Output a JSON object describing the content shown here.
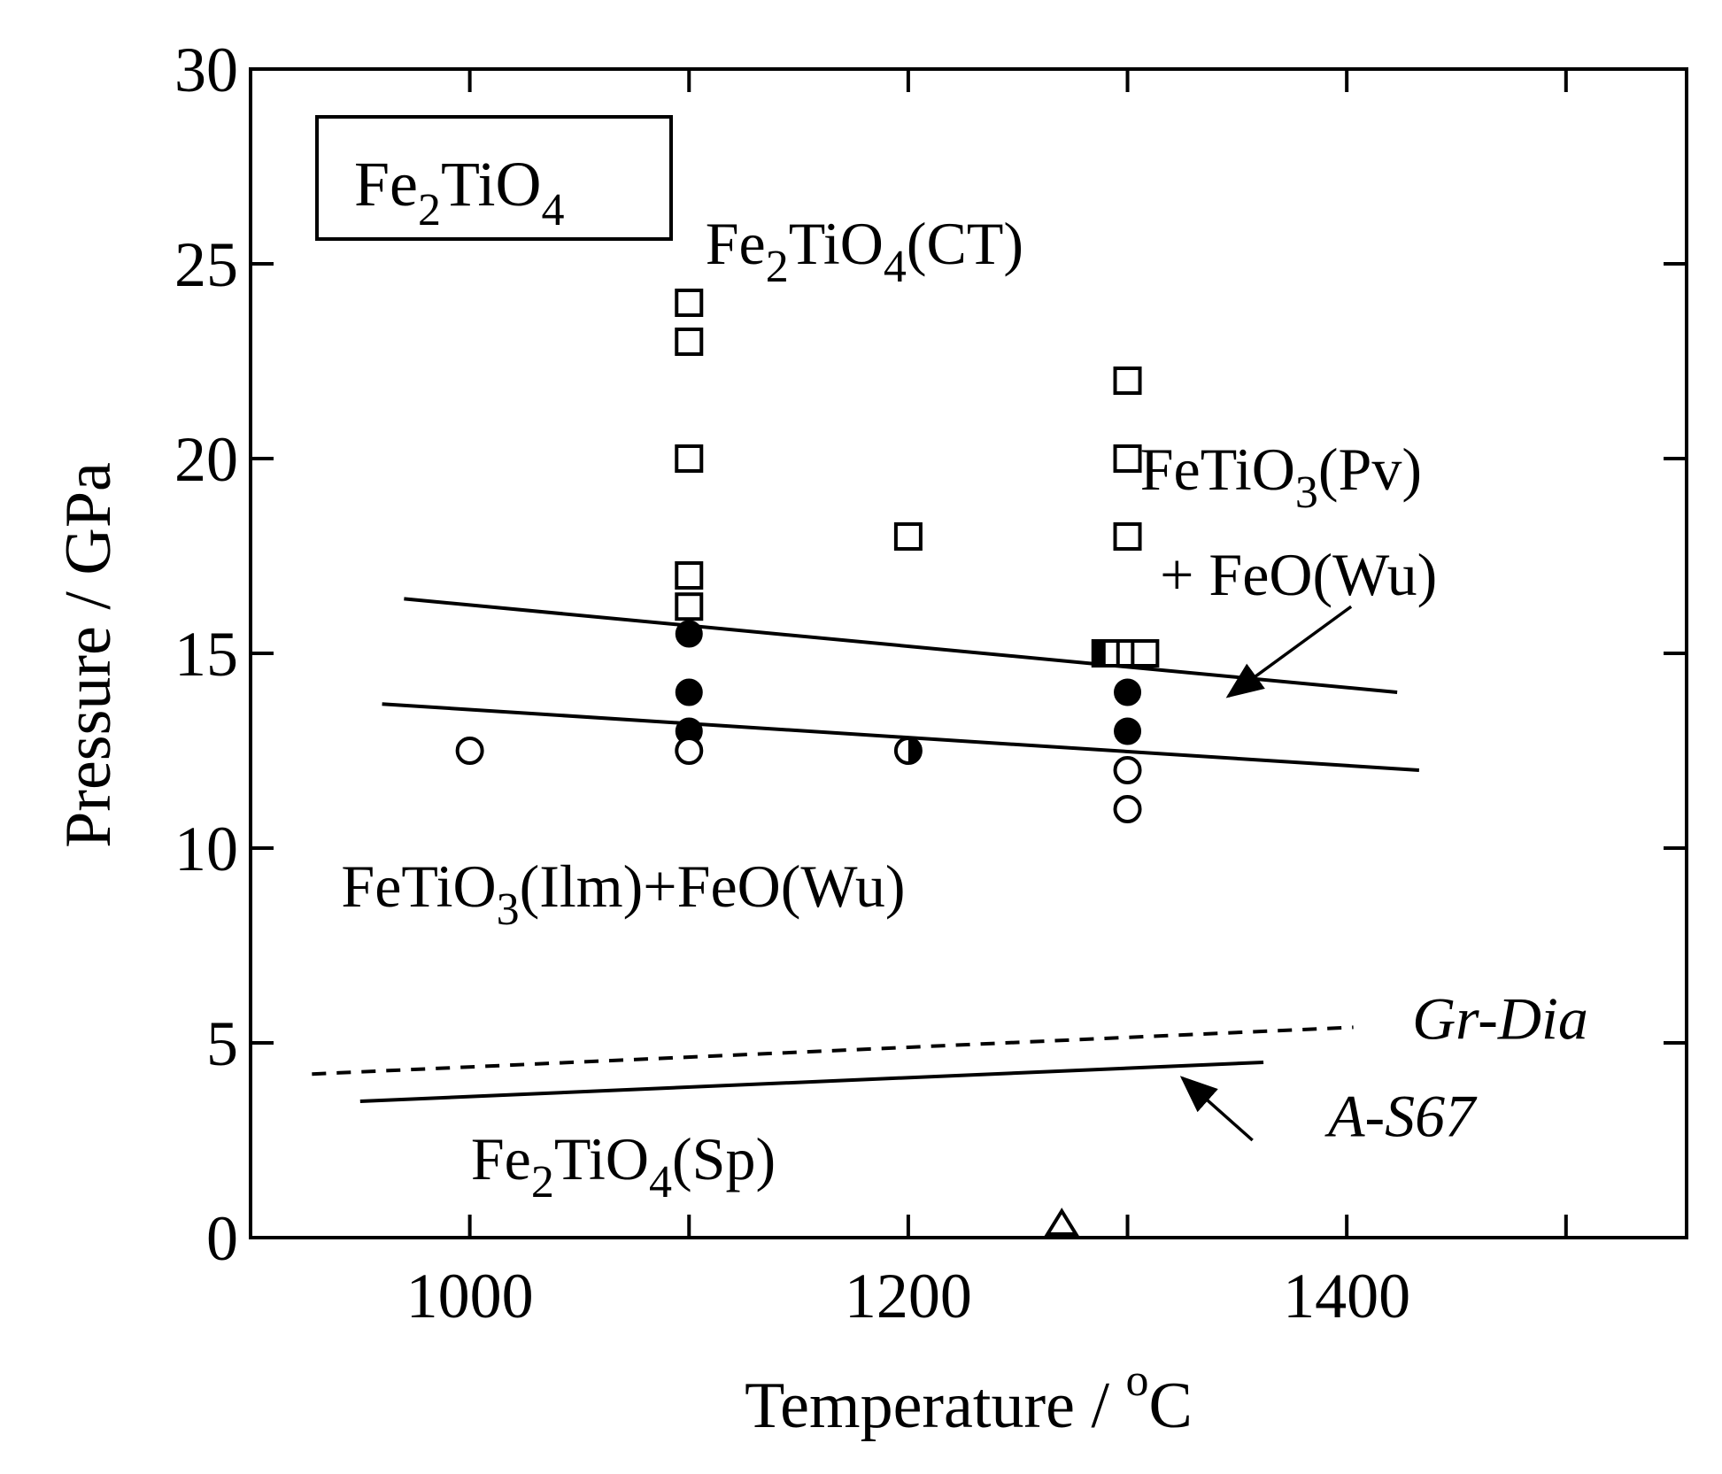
{
  "chart_data": {
    "type": "scatter",
    "xlabel": "Temperature / ",
    "xlabel_unit_sup": "o",
    "xlabel_unit": "C",
    "ylabel": "Pressure / GPa",
    "xlim": [
      900,
      1555
    ],
    "ylim": [
      0,
      30
    ],
    "x_ticks": [
      1000,
      1200,
      1400
    ],
    "x_minor_ticks": [
      1100,
      1300,
      1500
    ],
    "y_ticks": [
      0,
      5,
      10,
      15,
      20,
      25,
      30
    ],
    "grid": false,
    "compound_box": {
      "main": "Fe",
      "sub": "2",
      "rest": "TiO",
      "sub2": "4"
    },
    "series": [
      {
        "marker": "open-square",
        "points": [
          [
            1100,
            24.0
          ],
          [
            1100,
            23.0
          ],
          [
            1100,
            20.0
          ],
          [
            1100,
            17.0
          ],
          [
            1100,
            16.2
          ],
          [
            1200,
            18.0
          ],
          [
            1300,
            22.0
          ],
          [
            1300,
            20.0
          ],
          [
            1300,
            18.0
          ],
          [
            1300,
            15.0
          ],
          [
            1308,
            15.0
          ]
        ]
      },
      {
        "marker": "half-square",
        "points": [
          [
            1290,
            15.0
          ]
        ]
      },
      {
        "marker": "filled-circle",
        "points": [
          [
            1100,
            15.5
          ],
          [
            1100,
            14.0
          ],
          [
            1100,
            13.0
          ],
          [
            1300,
            14.0
          ],
          [
            1300,
            13.0
          ]
        ]
      },
      {
        "marker": "half-circle",
        "points": [
          [
            1200,
            12.5
          ]
        ]
      },
      {
        "marker": "open-circle",
        "points": [
          [
            1000,
            12.5
          ],
          [
            1100,
            12.5
          ],
          [
            1300,
            12.0
          ],
          [
            1300,
            11.0
          ]
        ]
      },
      {
        "marker": "open-triangle",
        "points": [
          [
            1270,
            0.0
          ]
        ]
      }
    ],
    "lines": [
      {
        "style": "solid",
        "points": [
          [
            970,
            16.4
          ],
          [
            1423,
            14.0
          ]
        ]
      },
      {
        "style": "solid",
        "points": [
          [
            960,
            13.7
          ],
          [
            1433,
            12.0
          ]
        ]
      },
      {
        "style": "dashed",
        "label": "Gr-Dia",
        "points": [
          [
            928,
            4.2
          ],
          [
            1403,
            5.4
          ]
        ]
      },
      {
        "style": "solid",
        "label": "A-S67",
        "points": [
          [
            950,
            3.5
          ],
          [
            1362,
            4.5
          ]
        ]
      }
    ],
    "annotations": [
      {
        "id": "ct",
        "parts": [
          "Fe",
          "2",
          "TiO",
          "4",
          "(CT)"
        ],
        "x": 1180,
        "y": 25.0
      },
      {
        "id": "pv1",
        "parts": [
          "FeTiO",
          "3",
          "(Pv)"
        ],
        "x": 1370,
        "y": 19.2
      },
      {
        "id": "pv2",
        "text": "+ FeO(Wu)",
        "x": 1378,
        "y": 16.5
      },
      {
        "id": "ilm",
        "parts": [
          "FeTiO",
          "3",
          "(Ilm)+FeO(Wu)"
        ],
        "x": 1070,
        "y": 8.5
      },
      {
        "id": "sp",
        "parts": [
          "Fe",
          "2",
          "TiO",
          "4",
          "(Sp)"
        ],
        "x": 1070,
        "y": 1.5
      },
      {
        "id": "grdia",
        "text": "Gr-Dia",
        "x": 1470,
        "y": 5.1
      },
      {
        "id": "as67",
        "text": "A-S67",
        "x": 1425,
        "y": 2.6
      }
    ],
    "arrows": [
      {
        "from": [
          1402,
          16.2
        ],
        "to": [
          1346,
          13.9
        ]
      },
      {
        "from": [
          1357,
          2.5
        ],
        "to": [
          1325,
          4.1
        ]
      }
    ]
  }
}
